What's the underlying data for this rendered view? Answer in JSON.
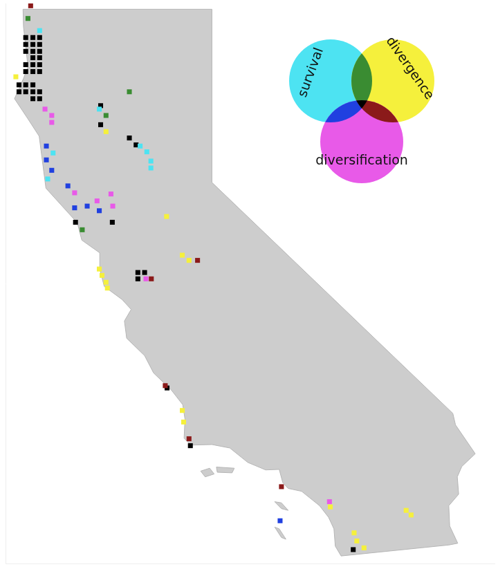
{
  "chart_data": {
    "type": "scatter",
    "marker": "square",
    "grid": false,
    "tick_labels": false,
    "legend": "top right",
    "xlim": [
      -124.6,
      -113.7
    ],
    "ylim": [
      32.4,
      42.1
    ],
    "outline": [
      [
        [
          -124.21,
          42.0
        ],
        [
          -120.0,
          42.0
        ],
        [
          -120.0,
          39.0
        ],
        [
          -114.63,
          35.0
        ],
        [
          -114.57,
          34.8
        ],
        [
          -114.13,
          34.3
        ],
        [
          -114.43,
          34.08
        ],
        [
          -114.53,
          33.9
        ],
        [
          -114.5,
          33.6
        ],
        [
          -114.72,
          33.4
        ],
        [
          -114.7,
          33.05
        ],
        [
          -114.52,
          32.75
        ],
        [
          -114.72,
          32.72
        ],
        [
          -117.12,
          32.53
        ],
        [
          -117.25,
          32.7
        ],
        [
          -117.28,
          33.0
        ],
        [
          -117.4,
          33.2
        ],
        [
          -117.6,
          33.4
        ],
        [
          -118.0,
          33.65
        ],
        [
          -118.3,
          33.7
        ],
        [
          -118.42,
          33.8
        ],
        [
          -118.5,
          34.03
        ],
        [
          -118.8,
          34.02
        ],
        [
          -119.2,
          34.15
        ],
        [
          -119.6,
          34.4
        ],
        [
          -120.0,
          34.46
        ],
        [
          -120.47,
          34.45
        ],
        [
          -120.62,
          34.57
        ],
        [
          -120.6,
          34.9
        ],
        [
          -120.65,
          35.15
        ],
        [
          -120.9,
          35.4
        ],
        [
          -121.3,
          35.7
        ],
        [
          -121.5,
          36.0
        ],
        [
          -121.9,
          36.3
        ],
        [
          -121.95,
          36.6
        ],
        [
          -121.8,
          36.8
        ],
        [
          -122.0,
          36.97
        ],
        [
          -122.4,
          37.2
        ],
        [
          -122.5,
          37.5
        ],
        [
          -122.5,
          37.78
        ],
        [
          -122.9,
          38.0
        ],
        [
          -123.0,
          38.3
        ],
        [
          -123.7,
          38.9
        ],
        [
          -123.8,
          39.5
        ],
        [
          -123.85,
          39.8
        ],
        [
          -124.1,
          40.1
        ],
        [
          -124.4,
          40.45
        ],
        [
          -124.2,
          40.8
        ],
        [
          -124.1,
          41.0
        ],
        [
          -124.2,
          41.7
        ],
        [
          -124.21,
          42.0
        ]
      ],
      [
        [
          -120.25,
          34.0
        ],
        [
          -120.05,
          34.05
        ],
        [
          -119.95,
          33.95
        ],
        [
          -120.15,
          33.9
        ]
      ],
      [
        [
          -119.9,
          34.07
        ],
        [
          -119.5,
          34.05
        ],
        [
          -119.55,
          33.97
        ],
        [
          -119.88,
          33.98
        ]
      ],
      [
        [
          -118.6,
          33.47
        ],
        [
          -118.45,
          33.45
        ],
        [
          -118.3,
          33.32
        ],
        [
          -118.45,
          33.35
        ]
      ],
      [
        [
          -118.6,
          33.03
        ],
        [
          -118.5,
          33.0
        ],
        [
          -118.35,
          32.82
        ],
        [
          -118.45,
          32.85
        ]
      ]
    ],
    "series": [
      {
        "name": "survival",
        "color": "#4de3f2",
        "values": [
          [
            -123.84,
            41.63
          ],
          [
            -122.51,
            40.27
          ],
          [
            -121.6,
            39.63
          ],
          [
            -121.45,
            39.53
          ],
          [
            -121.36,
            39.37
          ],
          [
            -121.36,
            39.25
          ],
          [
            -123.54,
            39.51
          ],
          [
            -123.66,
            39.06
          ]
        ]
      },
      {
        "name": "divergence",
        "color": "#f5f03c",
        "values": [
          [
            -124.37,
            40.83
          ],
          [
            -122.36,
            39.88
          ],
          [
            -121.01,
            38.41
          ],
          [
            -120.66,
            37.74
          ],
          [
            -120.51,
            37.65
          ],
          [
            -122.51,
            37.5
          ],
          [
            -122.45,
            37.39
          ],
          [
            -122.36,
            37.27
          ],
          [
            -122.33,
            37.17
          ],
          [
            -120.66,
            35.05
          ],
          [
            -120.63,
            34.85
          ],
          [
            -117.36,
            33.38
          ],
          [
            -115.67,
            33.32
          ],
          [
            -115.56,
            33.24
          ],
          [
            -116.83,
            32.93
          ],
          [
            -116.77,
            32.79
          ],
          [
            -116.61,
            32.67
          ]
        ]
      },
      {
        "name": "diversification",
        "color": "#e85ae8",
        "values": [
          [
            -123.72,
            40.27
          ],
          [
            -123.57,
            40.16
          ],
          [
            -123.57,
            40.04
          ],
          [
            -123.06,
            38.82
          ],
          [
            -122.56,
            38.68
          ],
          [
            -122.25,
            38.8
          ],
          [
            -122.21,
            38.59
          ],
          [
            -121.47,
            37.33
          ],
          [
            -117.38,
            33.47
          ]
        ]
      },
      {
        "members": [
          "survival",
          "divergence"
        ],
        "color": "#3a8c32",
        "values": [
          [
            -124.1,
            41.84
          ],
          [
            -121.84,
            40.57
          ],
          [
            -122.36,
            40.16
          ],
          [
            -122.89,
            38.18
          ]
        ]
      },
      {
        "members": [
          "survival",
          "diversification"
        ],
        "color": "#2040e0",
        "values": [
          [
            -123.69,
            39.63
          ],
          [
            -123.57,
            39.21
          ],
          [
            -123.21,
            38.94
          ],
          [
            -123.06,
            38.56
          ],
          [
            -122.78,
            38.59
          ],
          [
            -122.51,
            38.51
          ],
          [
            -118.48,
            33.14
          ],
          [
            -123.69,
            39.39
          ]
        ]
      },
      {
        "members": [
          "divergence",
          "diversification"
        ],
        "color": "#8b1a1a",
        "values": [
          [
            -124.04,
            42.06
          ],
          [
            -121.35,
            37.33
          ],
          [
            -120.32,
            37.65
          ],
          [
            -121.04,
            35.48
          ],
          [
            -120.51,
            34.56
          ],
          [
            -118.45,
            33.73
          ]
        ]
      },
      {
        "members": [
          "survival",
          "divergence",
          "diversification"
        ],
        "color": "#000000",
        "values": [
          [
            -124.15,
            41.51
          ],
          [
            -123.99,
            41.51
          ],
          [
            -123.84,
            41.51
          ],
          [
            -124.15,
            41.39
          ],
          [
            -123.99,
            41.39
          ],
          [
            -123.84,
            41.39
          ],
          [
            -124.15,
            41.27
          ],
          [
            -123.99,
            41.27
          ],
          [
            -123.84,
            41.27
          ],
          [
            -123.99,
            41.16
          ],
          [
            -123.84,
            41.16
          ],
          [
            -124.15,
            41.04
          ],
          [
            -123.99,
            41.04
          ],
          [
            -123.84,
            41.04
          ],
          [
            -124.15,
            40.92
          ],
          [
            -123.99,
            40.92
          ],
          [
            -123.84,
            40.92
          ],
          [
            -124.3,
            40.69
          ],
          [
            -124.15,
            40.69
          ],
          [
            -123.99,
            40.69
          ],
          [
            -124.3,
            40.57
          ],
          [
            -124.15,
            40.57
          ],
          [
            -123.99,
            40.57
          ],
          [
            -123.84,
            40.57
          ],
          [
            -123.99,
            40.45
          ],
          [
            -123.84,
            40.45
          ],
          [
            -122.48,
            40.33
          ],
          [
            -122.48,
            40.0
          ],
          [
            -121.84,
            39.77
          ],
          [
            -121.69,
            39.65
          ],
          [
            -122.22,
            38.31
          ],
          [
            -123.04,
            38.31
          ],
          [
            -121.65,
            37.44
          ],
          [
            -121.5,
            37.44
          ],
          [
            -121.65,
            37.33
          ],
          [
            -121.0,
            35.44
          ],
          [
            -120.48,
            34.44
          ],
          [
            -116.85,
            32.64
          ]
        ]
      }
    ]
  }
}
